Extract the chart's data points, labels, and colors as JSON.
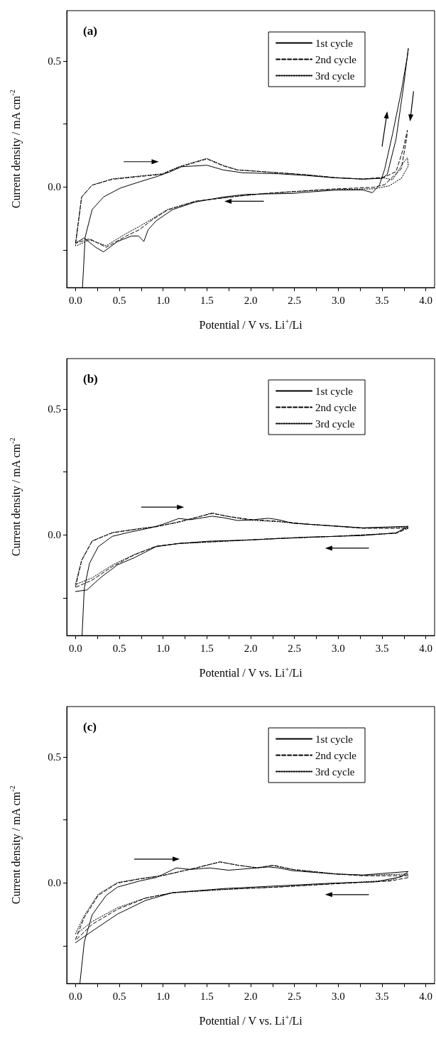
{
  "chart_data": [
    {
      "type": "line",
      "title": "(a)",
      "xlabel": "Potential / V vs. Li$^{+}$/Li",
      "ylabel": "Current density / mA cm$^{-2}$",
      "xlim": [
        -0.1,
        4.1
      ],
      "ylim": [
        -0.4,
        0.7
      ],
      "xticks": [
        {
          "value": 0,
          "label": "0.0"
        },
        {
          "value": 0.25,
          "label": null
        },
        {
          "value": 0.5,
          "label": "0.5"
        },
        {
          "value": 0.75,
          "label": null
        },
        {
          "value": 1,
          "label": "1.0"
        },
        {
          "value": 1.25,
          "label": null
        },
        {
          "value": 1.5,
          "label": "1.5"
        },
        {
          "value": 1.75,
          "label": null
        },
        {
          "value": 2,
          "label": "2.0"
        },
        {
          "value": 2.25,
          "label": null
        },
        {
          "value": 2.5,
          "label": "2.5"
        },
        {
          "value": 2.75,
          "label": null
        },
        {
          "value": 3,
          "label": "3.0"
        },
        {
          "value": 3.25,
          "label": null
        },
        {
          "value": 3.5,
          "label": "3.5"
        },
        {
          "value": 3.75,
          "label": null
        },
        {
          "value": 4,
          "label": "4.0"
        }
      ],
      "yticks": [
        {
          "value": -0.25,
          "label": null
        },
        {
          "value": 0,
          "label": "0.0"
        },
        {
          "value": 0.25,
          "label": null
        },
        {
          "value": 0.5,
          "label": "0.5"
        }
      ],
      "legend": "top right",
      "grid": false,
      "marker": "none",
      "series": [
        {
          "name": "1st cycle",
          "color": "#000000",
          "line_style": "solid",
          "x": [
            0.08,
            0.11,
            0.19,
            0.32,
            0.51,
            0.73,
            0.92,
            1.08,
            1.21,
            1.5,
            1.69,
            1.91,
            2.32,
            2.64,
            2.96,
            3.28,
            3.5,
            3.56,
            3.66,
            3.75,
            3.8,
            3.79,
            3.72,
            3.62,
            3.53,
            3.47,
            3.39,
            3.28,
            2.96,
            2.64,
            2.48,
            2.16,
            1.94,
            1.69,
            1.37,
            1.11,
            0.92,
            0.83,
            0.78,
            0.72,
            0.64,
            0.48,
            0.32,
            0.23,
            0.1,
            0
          ],
          "values": [
            -0.4,
            -0.2,
            -0.09,
            -0.04,
            -0.005,
            0.02,
            0.04,
            0.06,
            0.08,
            0.086,
            0.067,
            0.056,
            0.052,
            0.045,
            0.036,
            0.031,
            0.034,
            0.05,
            0.19,
            0.41,
            0.55,
            0.52,
            0.38,
            0.21,
            0.07,
            0.007,
            -0.023,
            -0.012,
            -0.013,
            -0.021,
            -0.026,
            -0.028,
            -0.03,
            -0.04,
            -0.06,
            -0.09,
            -0.135,
            -0.17,
            -0.217,
            -0.195,
            -0.195,
            -0.217,
            -0.258,
            -0.24,
            -0.203,
            -0.223
          ]
        },
        {
          "name": "2nd cycle",
          "color": "#000000",
          "line_style": "dashed",
          "x": [
            0,
            0.07,
            0.19,
            0.42,
            0.73,
            0.99,
            1.18,
            1.5,
            1.69,
            1.85,
            2.32,
            2.64,
            2.96,
            3.28,
            3.53,
            3.66,
            3.74,
            3.79,
            3.78,
            3.72,
            3.62,
            3.53,
            3.4,
            2.96,
            2.64,
            2.16,
            1.85,
            1.37,
            1.05,
            0.86,
            0.73,
            0.58,
            0.35,
            0.16,
            0.01
          ],
          "values": [
            -0.223,
            -0.04,
            0.007,
            0.03,
            0.041,
            0.05,
            0.078,
            0.111,
            0.083,
            0.067,
            0.056,
            0.048,
            0.037,
            0.031,
            0.039,
            0.061,
            0.148,
            0.225,
            0.19,
            0.072,
            0.039,
            0.009,
            -0.002,
            -0.008,
            -0.015,
            -0.026,
            -0.037,
            -0.057,
            -0.092,
            -0.135,
            -0.17,
            -0.195,
            -0.24,
            -0.206,
            -0.223
          ]
        },
        {
          "name": "3rd cycle",
          "color": "#000000",
          "line_style": "dotted",
          "x": [
            0,
            0.07,
            0.19,
            0.42,
            0.73,
            0.99,
            1.18,
            1.5,
            1.69,
            1.85,
            2.32,
            2.64,
            2.96,
            3.28,
            3.53,
            3.62,
            3.74,
            3.79,
            3.8,
            3.72,
            3.58,
            3.4,
            2.96,
            2.64,
            2.16,
            1.85,
            1.37,
            1.05,
            0.86,
            0.73,
            0.58,
            0.35,
            0.16,
            0.01
          ],
          "values": [
            -0.234,
            -0.04,
            0.007,
            0.032,
            0.043,
            0.052,
            0.08,
            0.113,
            0.085,
            0.068,
            0.056,
            0.048,
            0.037,
            0.031,
            0.035,
            0.028,
            0.094,
            0.116,
            0.083,
            0.034,
            0.004,
            -0.008,
            -0.01,
            -0.016,
            -0.027,
            -0.037,
            -0.057,
            -0.09,
            -0.13,
            -0.157,
            -0.185,
            -0.234,
            -0.21,
            -0.234
          ]
        }
      ]
    },
    {
      "type": "line",
      "title": "(b)",
      "xlabel": "Potential / V vs. Li$^{+}$/Li",
      "ylabel": "Current density / mA cm$^{-2}$",
      "xlim": [
        -0.1,
        4.1
      ],
      "ylim": [
        -0.4,
        0.7
      ],
      "xticks": [
        {
          "value": 0,
          "label": "0.0"
        },
        {
          "value": 0.25,
          "label": null
        },
        {
          "value": 0.5,
          "label": "0.5"
        },
        {
          "value": 0.75,
          "label": null
        },
        {
          "value": 1,
          "label": "1.0"
        },
        {
          "value": 1.25,
          "label": null
        },
        {
          "value": 1.5,
          "label": "1.5"
        },
        {
          "value": 1.75,
          "label": null
        },
        {
          "value": 2,
          "label": "2.0"
        },
        {
          "value": 2.25,
          "label": null
        },
        {
          "value": 2.5,
          "label": "2.5"
        },
        {
          "value": 2.75,
          "label": null
        },
        {
          "value": 3,
          "label": "3.0"
        },
        {
          "value": 3.25,
          "label": null
        },
        {
          "value": 3.5,
          "label": "3.5"
        },
        {
          "value": 3.75,
          "label": null
        },
        {
          "value": 4,
          "label": "4.0"
        }
      ],
      "yticks": [
        {
          "value": -0.25,
          "label": null
        },
        {
          "value": 0,
          "label": "0.0"
        },
        {
          "value": 0.25,
          "label": null
        },
        {
          "value": 0.5,
          "label": "0.5"
        }
      ],
      "legend": "top right",
      "grid": false,
      "marker": "none",
      "series": [
        {
          "name": "1st cycle",
          "color": "#000000",
          "line_style": "solid",
          "x": [
            0.075,
            0.1,
            0.16,
            0.26,
            0.42,
            0.61,
            0.86,
            0.99,
            1.18,
            1.31,
            1.56,
            1.69,
            1.85,
            2,
            2.2,
            2.32,
            2.48,
            2.8,
            3.28,
            3.8,
            3.66,
            3.28,
            2.64,
            2,
            1.53,
            1.18,
            0.92,
            0.67,
            0.48,
            0.29,
            0.13,
            0
          ],
          "values": [
            -0.4,
            -0.213,
            -0.113,
            -0.047,
            -0.006,
            0.01,
            0.028,
            0.041,
            0.065,
            0.06,
            0.074,
            0.068,
            0.057,
            0.059,
            0.066,
            0.06,
            0.046,
            0.039,
            0.028,
            0.034,
            0.008,
            -0.003,
            -0.009,
            -0.02,
            -0.025,
            -0.034,
            -0.047,
            -0.091,
            -0.119,
            -0.169,
            -0.219,
            -0.225
          ]
        },
        {
          "name": "2nd cycle",
          "color": "#000000",
          "line_style": "dashed",
          "x": [
            0,
            0.07,
            0.19,
            0.42,
            0.73,
            0.92,
            1.18,
            1.56,
            1.75,
            2,
            2.32,
            2.64,
            3.28,
            3.8,
            3.66,
            2.96,
            2.32,
            1.69,
            1.18,
            0.92,
            0.67,
            0.42,
            0.19,
            0.01
          ],
          "values": [
            -0.207,
            -0.102,
            -0.025,
            0.008,
            0.024,
            0.032,
            0.052,
            0.085,
            0.073,
            0.061,
            0.054,
            0.043,
            0.026,
            0.026,
            0.006,
            -0.006,
            -0.014,
            -0.025,
            -0.034,
            -0.045,
            -0.08,
            -0.126,
            -0.18,
            -0.207
          ]
        },
        {
          "name": "3rd cycle",
          "color": "#000000",
          "line_style": "dotted",
          "x": [
            0,
            0.07,
            0.19,
            0.42,
            0.73,
            0.92,
            1.18,
            1.56,
            1.75,
            2,
            2.32,
            2.64,
            3.28,
            3.8,
            3.66,
            2.96,
            2.32,
            1.69,
            1.18,
            0.92,
            0.67,
            0.42,
            0.19,
            0.01
          ],
          "values": [
            -0.196,
            -0.1,
            -0.024,
            0.009,
            0.025,
            0.033,
            0.05,
            0.087,
            0.072,
            0.058,
            0.052,
            0.042,
            0.027,
            0.03,
            0.007,
            -0.006,
            -0.015,
            -0.026,
            -0.035,
            -0.046,
            -0.078,
            -0.12,
            -0.171,
            -0.196
          ]
        }
      ]
    },
    {
      "type": "line",
      "title": "(c)",
      "xlabel": "Potential / V vs. Li$^{+}$/Li",
      "ylabel": "Current density / mA cm$^{-2}$",
      "xlim": [
        -0.1,
        4.1
      ],
      "ylim": [
        -0.4,
        0.7
      ],
      "xticks": [
        {
          "value": 0,
          "label": "0.0"
        },
        {
          "value": 0.25,
          "label": null
        },
        {
          "value": 0.5,
          "label": "0.5"
        },
        {
          "value": 0.75,
          "label": null
        },
        {
          "value": 1,
          "label": "1.0"
        },
        {
          "value": 1.25,
          "label": null
        },
        {
          "value": 1.5,
          "label": "1.5"
        },
        {
          "value": 1.75,
          "label": null
        },
        {
          "value": 2,
          "label": "2.0"
        },
        {
          "value": 2.25,
          "label": null
        },
        {
          "value": 2.5,
          "label": "2.5"
        },
        {
          "value": 2.75,
          "label": null
        },
        {
          "value": 3,
          "label": "3.0"
        },
        {
          "value": 3.25,
          "label": null
        },
        {
          "value": 3.5,
          "label": "3.5"
        },
        {
          "value": 3.75,
          "label": null
        },
        {
          "value": 4,
          "label": "4.0"
        }
      ],
      "yticks": [
        {
          "value": -0.25,
          "label": null
        },
        {
          "value": 0,
          "label": "0.0"
        },
        {
          "value": 0.25,
          "label": null
        },
        {
          "value": 0.5,
          "label": "0.5"
        }
      ],
      "legend": "top right",
      "grid": false,
      "marker": "none",
      "series": [
        {
          "name": "1st cycle",
          "color": "#000000",
          "line_style": "solid",
          "x": [
            0.05,
            0.1,
            0.19,
            0.35,
            0.48,
            0.73,
            0.92,
            0.99,
            1.15,
            1.31,
            1.53,
            1.75,
            2,
            2.2,
            2.32,
            2.48,
            2.96,
            3.28,
            3.8,
            3.72,
            3.43,
            2.96,
            2.32,
            1.69,
            1.11,
            0.8,
            0.48,
            0.19,
            0
          ],
          "values": [
            -0.4,
            -0.236,
            -0.127,
            -0.05,
            -0.017,
            0.007,
            0.021,
            0.032,
            0.059,
            0.053,
            0.059,
            0.05,
            0.057,
            0.063,
            0.059,
            0.048,
            0.035,
            0.031,
            0.045,
            0.024,
            0.004,
            -0.001,
            -0.012,
            -0.023,
            -0.039,
            -0.07,
            -0.124,
            -0.192,
            -0.238
          ]
        },
        {
          "name": "2nd cycle",
          "color": "#000000",
          "line_style": "dashed",
          "x": [
            0,
            0.1,
            0.26,
            0.48,
            0.73,
            0.99,
            1.37,
            1.65,
            1.85,
            2.07,
            2.26,
            2.48,
            2.96,
            3.28,
            3.8,
            3.8,
            3.59,
            2.96,
            2.32,
            1.69,
            1.11,
            0.8,
            0.48,
            0.19,
            0.01
          ],
          "values": [
            -0.225,
            -0.138,
            -0.05,
            -0.001,
            0.015,
            0.028,
            0.059,
            0.083,
            0.07,
            0.059,
            0.07,
            0.053,
            0.035,
            0.028,
            0.028,
            0.021,
            0.007,
            -0.004,
            -0.017,
            -0.026,
            -0.039,
            -0.061,
            -0.105,
            -0.165,
            -0.225
          ]
        },
        {
          "name": "3rd cycle",
          "color": "#000000",
          "line_style": "dotted",
          "x": [
            0,
            0.1,
            0.26,
            0.48,
            0.73,
            0.99,
            1.37,
            1.65,
            1.85,
            2.07,
            2.26,
            2.48,
            2.96,
            3.28,
            3.8,
            3.59,
            2.96,
            2.32,
            1.69,
            1.11,
            0.8,
            0.48,
            0.19,
            0.01
          ],
          "values": [
            -0.203,
            -0.13,
            -0.045,
            0.001,
            0.016,
            0.029,
            0.058,
            0.083,
            0.07,
            0.06,
            0.068,
            0.053,
            0.036,
            0.03,
            0.035,
            0.01,
            -0.003,
            -0.016,
            -0.027,
            -0.04,
            -0.06,
            -0.099,
            -0.154,
            -0.203
          ]
        }
      ]
    }
  ]
}
